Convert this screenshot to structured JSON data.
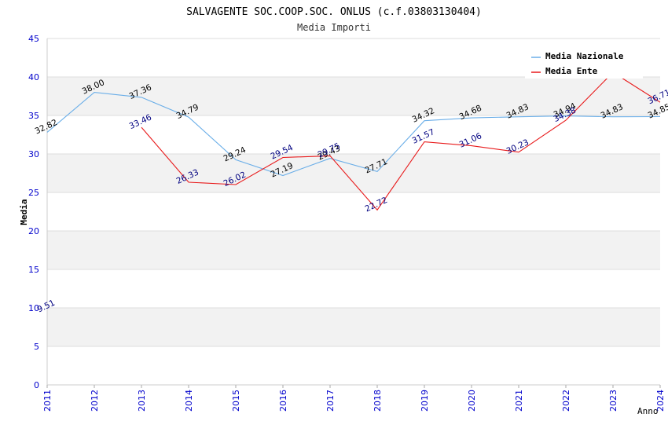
{
  "chart_data": {
    "type": "line",
    "title": "SALVAGENTE SOC.COOP.SOC. ONLUS (c.f.03803130404)",
    "subtitle": "Media Importi",
    "xlabel": "Anno",
    "ylabel": "Media",
    "ylim": [
      0,
      45
    ],
    "yticks": [
      "0",
      "5",
      "10",
      "15",
      "20",
      "25",
      "30",
      "35",
      "40",
      "45"
    ],
    "categories": [
      "2011",
      "2012",
      "2013",
      "2014",
      "2015",
      "2016",
      "2017",
      "2018",
      "2019",
      "2020",
      "2021",
      "2022",
      "2023",
      "2024"
    ],
    "legend_position": "top-right",
    "series": [
      {
        "name": "Media Nazionale",
        "color": "#6aaee8",
        "label_color": "#000000",
        "values": [
          32.82,
          38.0,
          37.36,
          34.79,
          29.24,
          27.19,
          29.43,
          27.71,
          34.32,
          34.68,
          34.83,
          34.94,
          34.83,
          34.85
        ],
        "labels": [
          "32.82",
          "38.00",
          "37.36",
          "34.79",
          "29.24",
          "27.19",
          "29.43",
          "27.71",
          "34.32",
          "34.68",
          "34.83",
          "34.94",
          "34.83",
          "34.85"
        ]
      },
      {
        "name": "Media Ente",
        "color": "#e8191a",
        "label_color": "#000080",
        "values": [
          9.51,
          null,
          33.46,
          26.33,
          26.02,
          29.54,
          29.75,
          22.72,
          31.57,
          31.06,
          30.23,
          34.38,
          40.6,
          36.71
        ],
        "labels": [
          "9.51",
          "",
          "33.46",
          "26.33",
          "26.02",
          "29.54",
          "29.75",
          "22.72",
          "31.57",
          "31.06",
          "30.23",
          "34.38",
          "",
          "36.71"
        ]
      }
    ],
    "grid": true,
    "colors": {
      "axis_text": "#0000cc",
      "band": "#f2f2f2",
      "gridline": "#dddddd"
    }
  }
}
